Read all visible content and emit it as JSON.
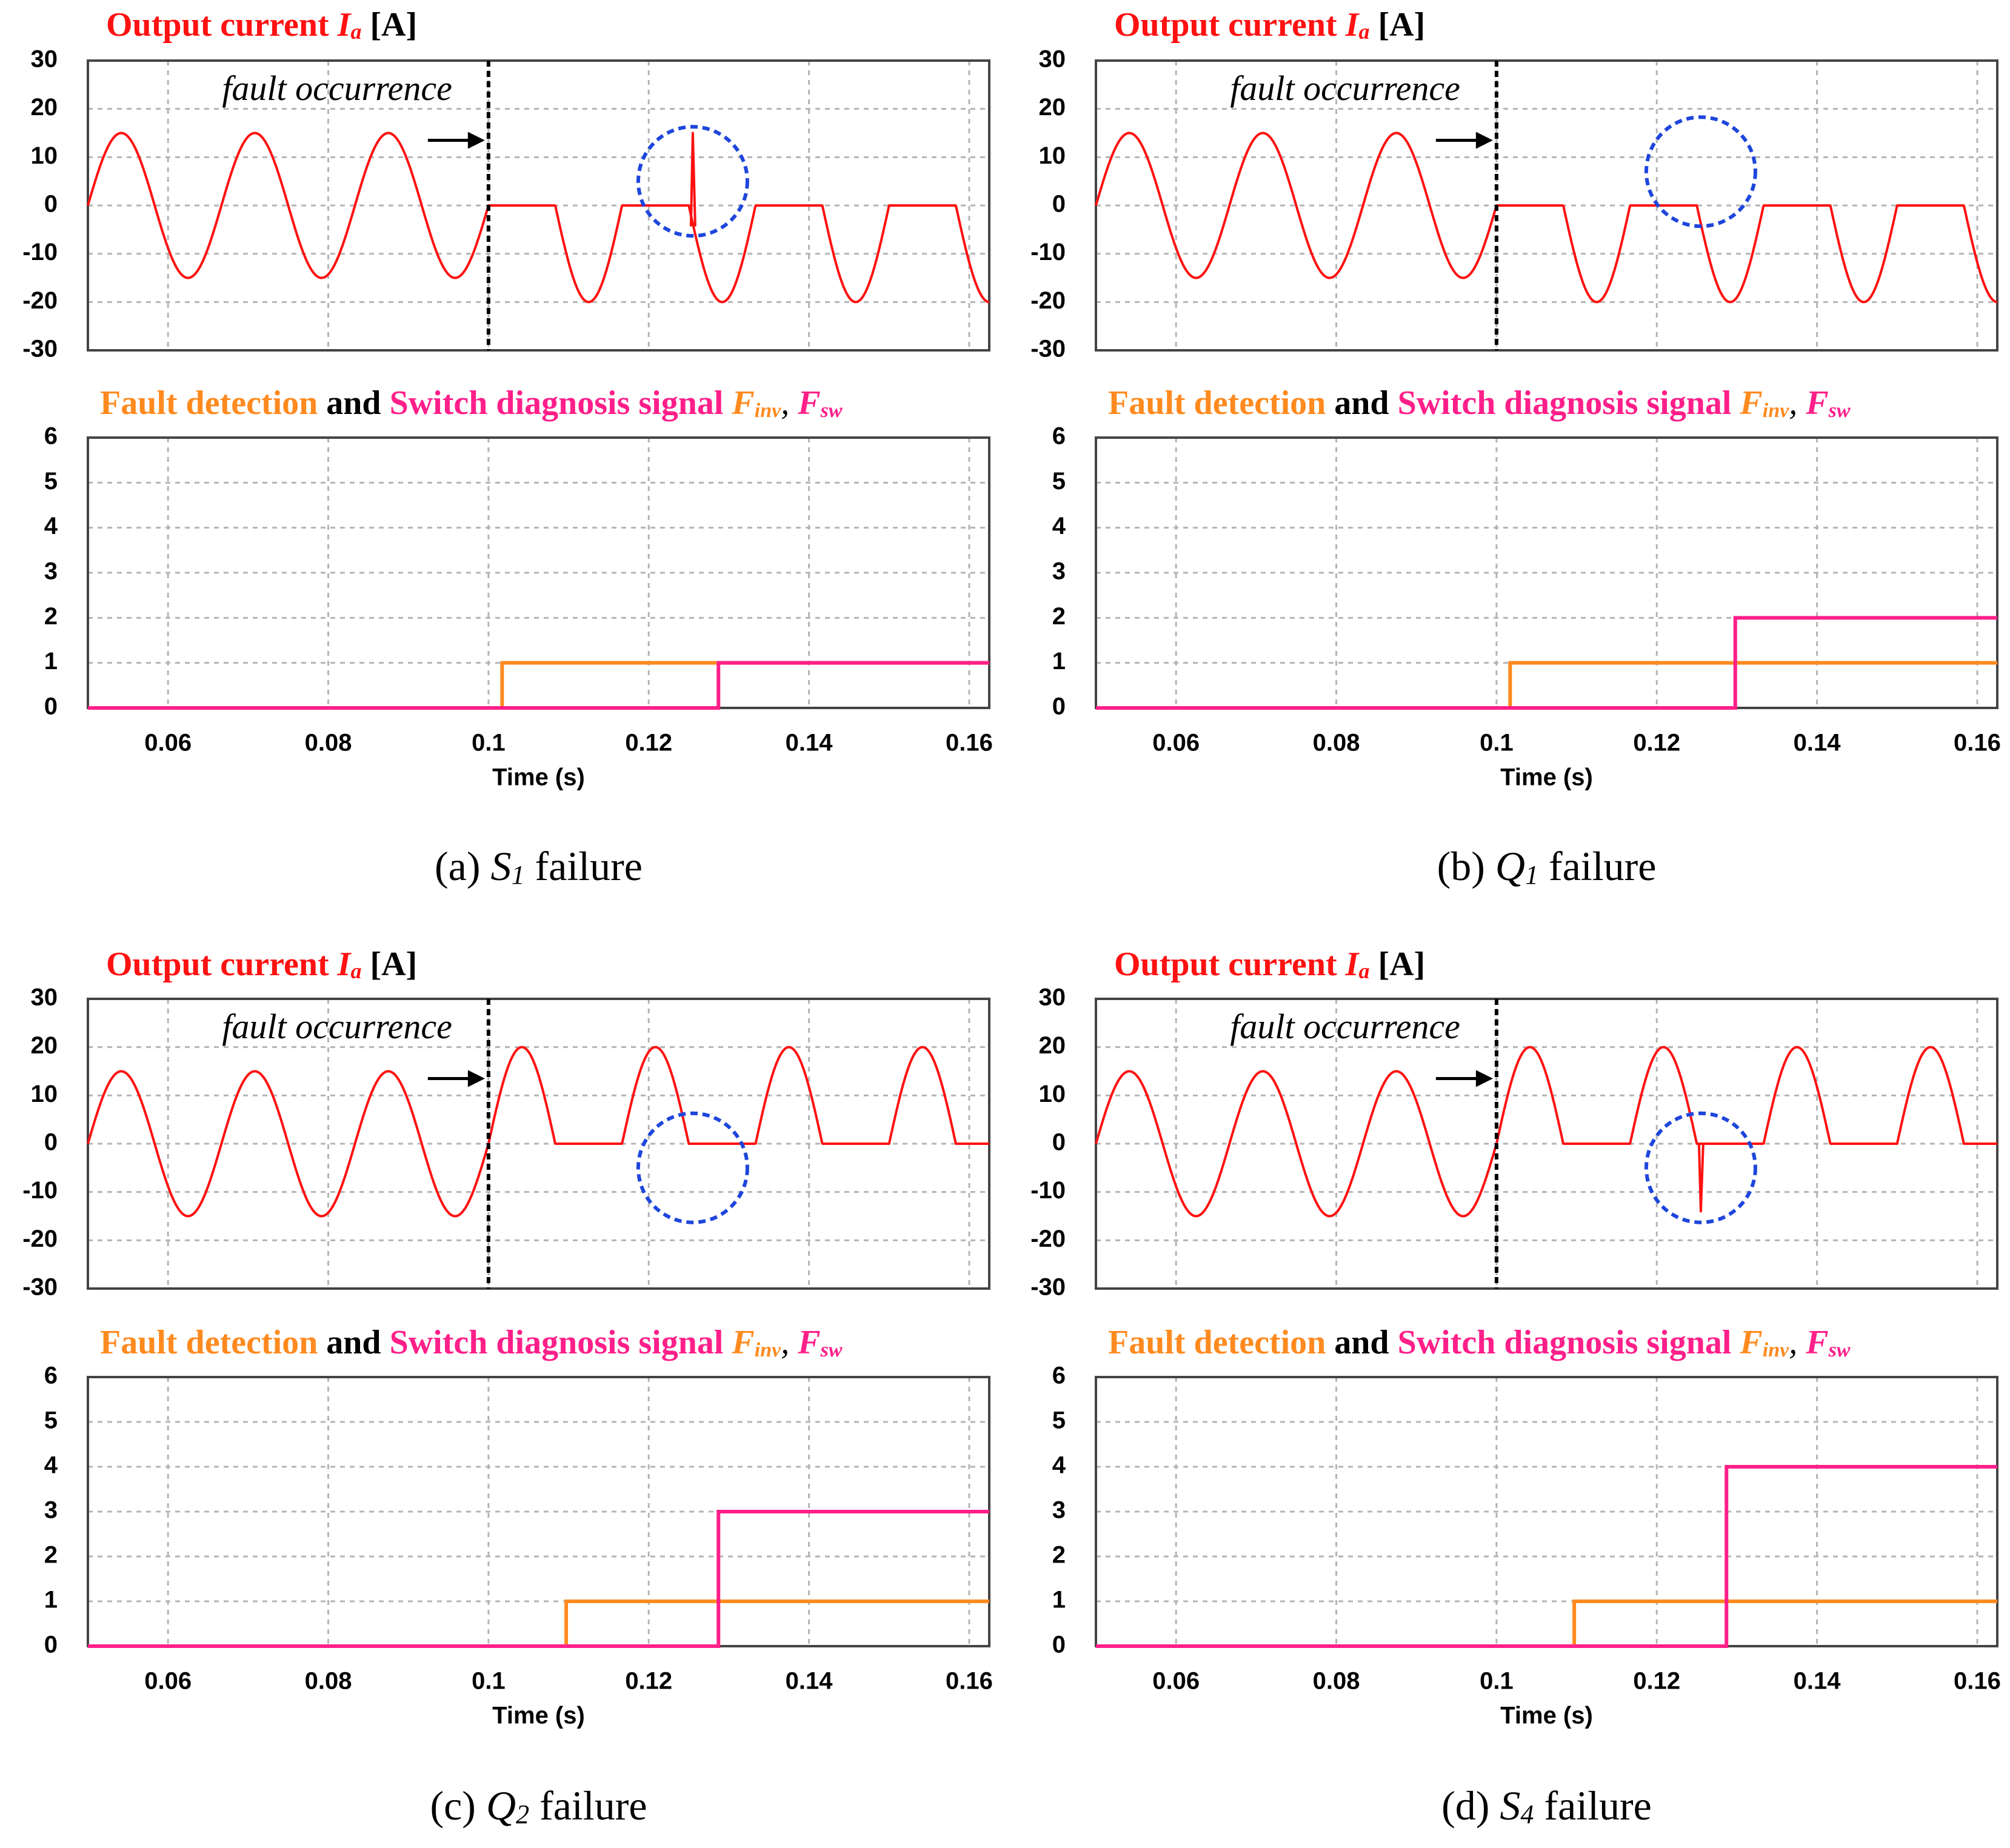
{
  "colors": {
    "current": "#ff1111",
    "finv": "#ff8a1f",
    "fsw": "#ff1f8a",
    "fault_line": "#000000",
    "circle": "#1e46dc",
    "grid": "#b4b4b4"
  },
  "common": {
    "top_title": {
      "main": "Output current ",
      "symbol": "I",
      "sub": "a",
      "unit": " [A]"
    },
    "bottom_title": {
      "part1": "Fault detection",
      "and": " and ",
      "part2": "Switch diagnosis signal ",
      "finv_symbol": "F",
      "finv_sub": "inv",
      "comma": ", ",
      "fsw_symbol": "F",
      "fsw_sub": "sw"
    },
    "annotation": "fault occurrence",
    "xlabel": "Time (s)"
  },
  "chart_data": [
    {
      "id": "a",
      "caption": {
        "prefix": "(a) ",
        "symbol": "S",
        "sub": "1",
        "suffix": " failure"
      },
      "current": {
        "type": "line",
        "title": "Output current Ia [A]",
        "ylim": [
          -30,
          30
        ],
        "yticks": [
          30,
          20,
          10,
          0,
          -10,
          -20,
          -30
        ],
        "xlim": [
          0.05,
          0.16
        ],
        "fault_time": 0.1,
        "waveform": {
          "amplitude_pre": 15,
          "frequency_hz": 60,
          "post_mode": "negative_only",
          "post_amplitude": 20
        },
        "spike": {
          "t": 0.1255,
          "value": 15
        },
        "circle": {
          "t": 0.1255,
          "value": 5
        }
      },
      "signal": {
        "type": "step",
        "title": "Fault detection and Switch diagnosis signal Finv, Fsw",
        "ylim": [
          0,
          6
        ],
        "yticks": [
          6,
          5,
          4,
          3,
          2,
          1,
          0
        ],
        "xticks": [
          "0.06",
          "0.08",
          "0.1",
          "0.12",
          "0.14",
          "0.16"
        ],
        "xlabel": "Time (s)",
        "series": [
          {
            "name": "Finv",
            "step_time": 0.1017,
            "step_value": 1
          },
          {
            "name": "Fsw",
            "step_time": 0.1287,
            "step_value": 1
          }
        ]
      }
    },
    {
      "id": "b",
      "caption": {
        "prefix": "(b) ",
        "symbol": "Q",
        "sub": "1",
        "suffix": " failure"
      },
      "current": {
        "type": "line",
        "title": "Output current Ia [A]",
        "ylim": [
          -30,
          30
        ],
        "yticks": [
          30,
          20,
          10,
          0,
          -10,
          -20,
          -30
        ],
        "xlim": [
          0.05,
          0.16
        ],
        "fault_time": 0.1,
        "waveform": {
          "amplitude_pre": 15,
          "frequency_hz": 60,
          "post_mode": "negative_only",
          "post_amplitude": 20
        },
        "spike": null,
        "circle": {
          "t": 0.1255,
          "value": 7
        }
      },
      "signal": {
        "type": "step",
        "title": "Fault detection and Switch diagnosis signal Finv, Fsw",
        "ylim": [
          0,
          6
        ],
        "yticks": [
          6,
          5,
          4,
          3,
          2,
          1,
          0
        ],
        "xticks": [
          "0.06",
          "0.08",
          "0.1",
          "0.12",
          "0.14",
          "0.16"
        ],
        "xlabel": "Time (s)",
        "series": [
          {
            "name": "Finv",
            "step_time": 0.1017,
            "step_value": 1
          },
          {
            "name": "Fsw",
            "step_time": 0.1298,
            "step_value": 2
          }
        ]
      }
    },
    {
      "id": "c",
      "caption": {
        "prefix": "(c) ",
        "symbol": "Q",
        "sub": "2",
        "suffix": " failure"
      },
      "current": {
        "type": "line",
        "title": "Output current Ia [A]",
        "ylim": [
          -30,
          30
        ],
        "yticks": [
          30,
          20,
          10,
          0,
          -10,
          -20,
          -30
        ],
        "xlim": [
          0.05,
          0.16
        ],
        "fault_time": 0.1,
        "waveform": {
          "amplitude_pre": 15,
          "frequency_hz": 60,
          "post_mode": "positive_only",
          "post_amplitude": 20
        },
        "spike": null,
        "circle": {
          "t": 0.1255,
          "value": -5
        }
      },
      "signal": {
        "type": "step",
        "title": "Fault detection and Switch diagnosis signal Finv, Fsw",
        "ylim": [
          0,
          6
        ],
        "yticks": [
          6,
          5,
          4,
          3,
          2,
          1,
          0
        ],
        "xticks": [
          "0.06",
          "0.08",
          "0.1",
          "0.12",
          "0.14",
          "0.16"
        ],
        "xlabel": "Time (s)",
        "series": [
          {
            "name": "Finv",
            "step_time": 0.1097,
            "step_value": 1
          },
          {
            "name": "Fsw",
            "step_time": 0.1287,
            "step_value": 3
          }
        ]
      }
    },
    {
      "id": "d",
      "caption": {
        "prefix": "(d) ",
        "symbol": "S",
        "sub": "4",
        "suffix": " failure"
      },
      "current": {
        "type": "line",
        "title": "Output current Ia [A]",
        "ylim": [
          -30,
          30
        ],
        "yticks": [
          30,
          20,
          10,
          0,
          -10,
          -20,
          -30
        ],
        "xlim": [
          0.05,
          0.16
        ],
        "fault_time": 0.1,
        "waveform": {
          "amplitude_pre": 15,
          "frequency_hz": 60,
          "post_mode": "positive_only",
          "post_amplitude": 20
        },
        "spike": {
          "t": 0.1255,
          "value": -14
        },
        "circle": {
          "t": 0.1255,
          "value": -5
        }
      },
      "signal": {
        "type": "step",
        "title": "Fault detection and Switch diagnosis signal Finv, Fsw",
        "ylim": [
          0,
          6
        ],
        "yticks": [
          6,
          5,
          4,
          3,
          2,
          1,
          0
        ],
        "xticks": [
          "0.06",
          "0.08",
          "0.1",
          "0.12",
          "0.14",
          "0.16"
        ],
        "xlabel": "Time (s)",
        "series": [
          {
            "name": "Finv",
            "step_time": 0.1097,
            "step_value": 1
          },
          {
            "name": "Fsw",
            "step_time": 0.1287,
            "step_value": 4
          }
        ]
      }
    }
  ]
}
